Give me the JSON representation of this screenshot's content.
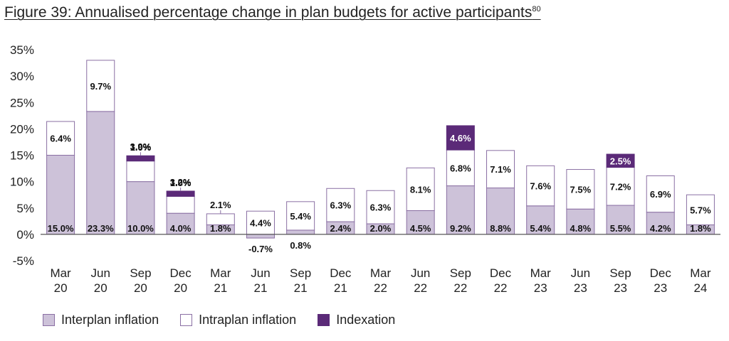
{
  "title": "Figure 39: Annualised percentage change in plan budgets for active participants",
  "title_footnote": "80",
  "colors": {
    "interplan": "#cdc2d9",
    "intraplan": "#ffffff",
    "indexation": "#5b2a78",
    "border": "#8a6fa3"
  },
  "chart_data": {
    "type": "bar",
    "stacked": true,
    "title": "Figure 39: Annualised percentage change in plan budgets for active participants",
    "xlabel": "",
    "ylabel": "",
    "ylim": [
      -5,
      35
    ],
    "yticks": [
      -5,
      0,
      5,
      10,
      15,
      20,
      25,
      30,
      35
    ],
    "ytick_labels": [
      "-5%",
      "0%",
      "5%",
      "10%",
      "15%",
      "20%",
      "25%",
      "30%",
      "35%"
    ],
    "grid": false,
    "legend_position": "bottom-left",
    "categories": [
      [
        "Mar",
        "20"
      ],
      [
        "Jun",
        "20"
      ],
      [
        "Sep",
        "20"
      ],
      [
        "Dec",
        "20"
      ],
      [
        "Mar",
        "21"
      ],
      [
        "Jun",
        "21"
      ],
      [
        "Sep",
        "21"
      ],
      [
        "Dec",
        "21"
      ],
      [
        "Mar",
        "22"
      ],
      [
        "Jun",
        "22"
      ],
      [
        "Sep",
        "22"
      ],
      [
        "Dec",
        "22"
      ],
      [
        "Mar",
        "23"
      ],
      [
        "Jun",
        "23"
      ],
      [
        "Sep",
        "23"
      ],
      [
        "Dec",
        "23"
      ],
      [
        "Mar",
        "24"
      ]
    ],
    "series": [
      {
        "name": "Interplan inflation",
        "values": [
          15.0,
          23.3,
          10.0,
          4.0,
          1.8,
          -0.7,
          0.8,
          2.4,
          2.0,
          4.5,
          9.2,
          8.8,
          5.4,
          4.8,
          5.5,
          4.2,
          1.8
        ],
        "labels": [
          "15.0%",
          "23.3%",
          "10.0%",
          "4.0%",
          "1.8%",
          "-0.7%",
          "0.8%",
          "2.4%",
          "2.0%",
          "4.5%",
          "9.2%",
          "8.8%",
          "5.4%",
          "4.8%",
          "5.5%",
          "4.2%",
          "1.8%"
        ]
      },
      {
        "name": "Intraplan inflation",
        "values": [
          6.4,
          9.7,
          3.9,
          3.2,
          2.1,
          4.4,
          5.4,
          6.3,
          6.3,
          8.1,
          6.8,
          7.1,
          7.6,
          7.5,
          7.2,
          6.9,
          5.7
        ],
        "labels": [
          "6.4%",
          "9.7%",
          "3.9%",
          "3.2%",
          "2.1%",
          "4.4%",
          "5.4%",
          "6.3%",
          "6.3%",
          "8.1%",
          "6.8%",
          "7.1%",
          "7.6%",
          "7.5%",
          "7.2%",
          "6.9%",
          "5.7%"
        ]
      },
      {
        "name": "Indexation",
        "values": [
          0,
          0,
          1.0,
          1.0,
          0,
          0,
          0,
          0,
          0,
          0,
          4.6,
          0,
          0,
          0,
          2.5,
          0,
          0
        ],
        "labels": [
          "",
          "",
          "1.0%",
          "1.0%",
          "",
          "",
          "",
          "",
          "",
          "",
          "4.6%",
          "",
          "",
          "",
          "2.5%",
          "",
          ""
        ]
      }
    ]
  }
}
